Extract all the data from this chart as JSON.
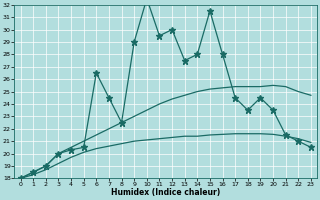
{
  "xlabel": "Humidex (Indice chaleur)",
  "background_color": "#b2dede",
  "grid_color": "#c8e8e8",
  "line_color": "#1a6b65",
  "x_values": [
    0,
    1,
    2,
    3,
    4,
    5,
    6,
    7,
    8,
    9,
    10,
    11,
    12,
    13,
    14,
    15,
    16,
    17,
    18,
    19,
    20,
    21,
    22,
    23
  ],
  "line_main_y": [
    18.0,
    18.5,
    19.0,
    20.0,
    20.3,
    20.5,
    26.5,
    24.5,
    22.5,
    29.0,
    32.5,
    29.5,
    30.0,
    27.5,
    28.0,
    31.5,
    28.0,
    24.5,
    23.5,
    24.5,
    23.5,
    21.5,
    21.0,
    20.5
  ],
  "line_upper_y": [
    18.0,
    18.5,
    19.0,
    20.0,
    20.5,
    21.0,
    21.5,
    22.0,
    22.5,
    23.0,
    23.5,
    24.0,
    24.4,
    24.7,
    25.0,
    25.2,
    25.3,
    25.4,
    25.4,
    25.4,
    25.5,
    25.4,
    25.0,
    24.7
  ],
  "line_lower_y": [
    18.0,
    18.3,
    18.7,
    19.2,
    19.7,
    20.1,
    20.4,
    20.6,
    20.8,
    21.0,
    21.1,
    21.2,
    21.3,
    21.4,
    21.4,
    21.5,
    21.55,
    21.6,
    21.6,
    21.6,
    21.55,
    21.4,
    21.2,
    20.9
  ],
  "ylim": [
    18,
    32
  ],
  "xlim": [
    -0.5,
    23.5
  ],
  "yticks": [
    18,
    19,
    20,
    21,
    22,
    23,
    24,
    25,
    26,
    27,
    28,
    29,
    30,
    31,
    32
  ],
  "xticks": [
    0,
    1,
    2,
    3,
    4,
    5,
    6,
    7,
    8,
    9,
    10,
    11,
    12,
    13,
    14,
    15,
    16,
    17,
    18,
    19,
    20,
    21,
    22,
    23
  ],
  "marker": "*",
  "marker_size": 4.5,
  "linewidth": 0.9
}
